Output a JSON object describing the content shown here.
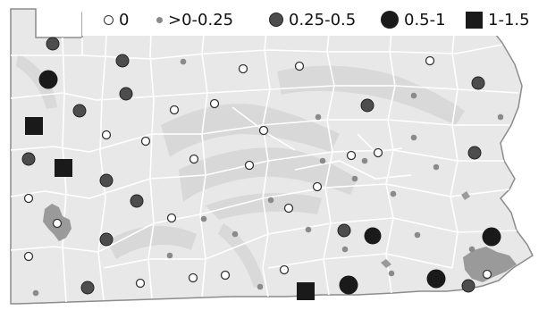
{
  "legend": {
    "items": [
      {
        "key": "zero",
        "label": "0"
      },
      {
        "key": "tiny",
        "label": ">0-0.25"
      },
      {
        "key": "med",
        "label": "0.25-0.5"
      },
      {
        "key": "large",
        "label": "0.5-1"
      },
      {
        "key": "square",
        "label": "1-1.5"
      }
    ]
  },
  "colors": {
    "land": "#e8e8e8",
    "terrain": "#d9d9d9",
    "boundary": "#ffffff",
    "outline": "#8c8c8c",
    "urban": "#9a9a9a",
    "symbol_dark": "#1a1a1a",
    "symbol_med": "#4d4d4d",
    "symbol_tiny": "#8a8a8a"
  }
}
